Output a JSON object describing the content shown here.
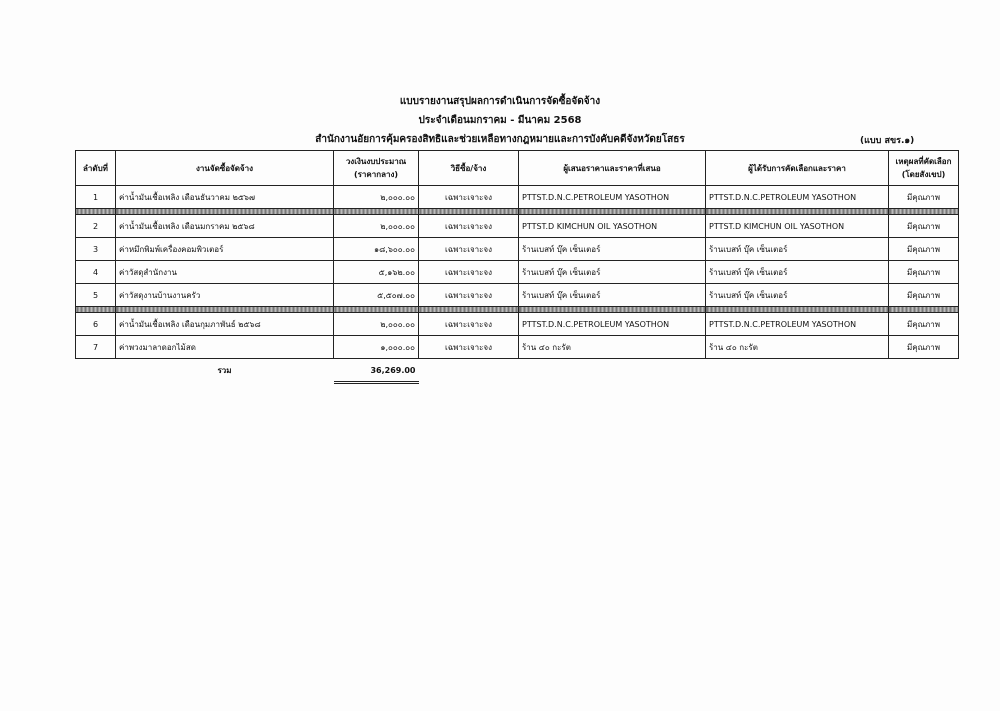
{
  "header": {
    "title": "แบบรายงานสรุปผลการดำเนินการจัดซื้อจัดจ้าง",
    "period": "ประจำเดือนมกราคม - มีนาคม 2568",
    "office": "สำนักงานอัยการคุ้มครองสิทธิและช่วยเหลือทางกฎหมายและการบังคับคดีจังหวัดยโสธร",
    "form": "(แบบ สขร.๑)"
  },
  "table": {
    "columns": [
      [
        "ลำดับที่"
      ],
      [
        "งานจัดซื้อจัดจ้าง"
      ],
      [
        "วงเงินงบประมาณ",
        "(ราคากลาง)"
      ],
      [
        "วิธีซื้อ/จ้าง"
      ],
      [
        "ผู้เสนอราคาและราคาที่เสนอ"
      ],
      [
        "ผู้ได้รับการคัดเลือกและราคา"
      ],
      [
        "เหตุผลที่คัดเลือก",
        "(โดยสังเขป)"
      ]
    ],
    "groups": [
      [
        [
          "1",
          "ค่าน้ำมันเชื้อเพลิง เดือนธันวาคม ๒๕๖๗",
          "๒,๐๐๐.๐๐",
          "เฉพาะเจาะจง",
          "PTTST.D.N.C.PETROLEUM YASOTHON",
          "PTTST.D.N.C.PETROLEUM YASOTHON",
          "มีคุณภาพ"
        ]
      ],
      [
        [
          "2",
          "ค่าน้ำมันเชื้อเพลิง เดือนมกราคม ๒๕๖๘",
          "๒,๐๐๐.๐๐",
          "เฉพาะเจาะจง",
          "PTTST.D KIMCHUN OIL YASOTHON",
          "PTTST.D KIMCHUN OIL YASOTHON",
          "มีคุณภาพ"
        ],
        [
          "3",
          "ค่าหมึกพิมพ์เครื่องคอมพิวเตอร์",
          "๑๘,๖๐๐.๐๐",
          "เฉพาะเจาะจง",
          "ร้านเบสท์ บุ๊ค เซ็นเตอร์",
          "ร้านเบสท์ บุ๊ค เซ็นเตอร์",
          "มีคุณภาพ"
        ],
        [
          "4",
          "ค่าวัสดุสำนักงาน",
          "๕,๑๖๒.๐๐",
          "เฉพาะเจาะจง",
          "ร้านเบสท์ บุ๊ค เซ็นเตอร์",
          "ร้านเบสท์ บุ๊ค เซ็นเตอร์",
          "มีคุณภาพ"
        ],
        [
          "5",
          "ค่าวัสดุงานบ้านงานครัว",
          "๕,๕๐๗.๐๐",
          "เฉพาะเจาะจง",
          "ร้านเบสท์ บุ๊ค เซ็นเตอร์",
          "ร้านเบสท์ บุ๊ค เซ็นเตอร์",
          "มีคุณภาพ"
        ]
      ],
      [
        [
          "6",
          "ค่าน้ำมันเชื้อเพลิง เดือนกุมภาพันธ์ ๒๕๖๘",
          "๒,๐๐๐.๐๐",
          "เฉพาะเจาะจง",
          "PTTST.D.N.C.PETROLEUM YASOTHON",
          "PTTST.D.N.C.PETROLEUM YASOTHON",
          "มีคุณภาพ"
        ],
        [
          "7",
          "ค่าพวงมาลาดอกไม้สด",
          "๑,๐๐๐.๐๐",
          "เฉพาะเจาะจง",
          "ร้าน ๔๐ กะรัต",
          "ร้าน ๔๐ กะรัต",
          "มีคุณภาพ"
        ]
      ]
    ],
    "total_label": "รวม",
    "total": "36,269.00"
  }
}
